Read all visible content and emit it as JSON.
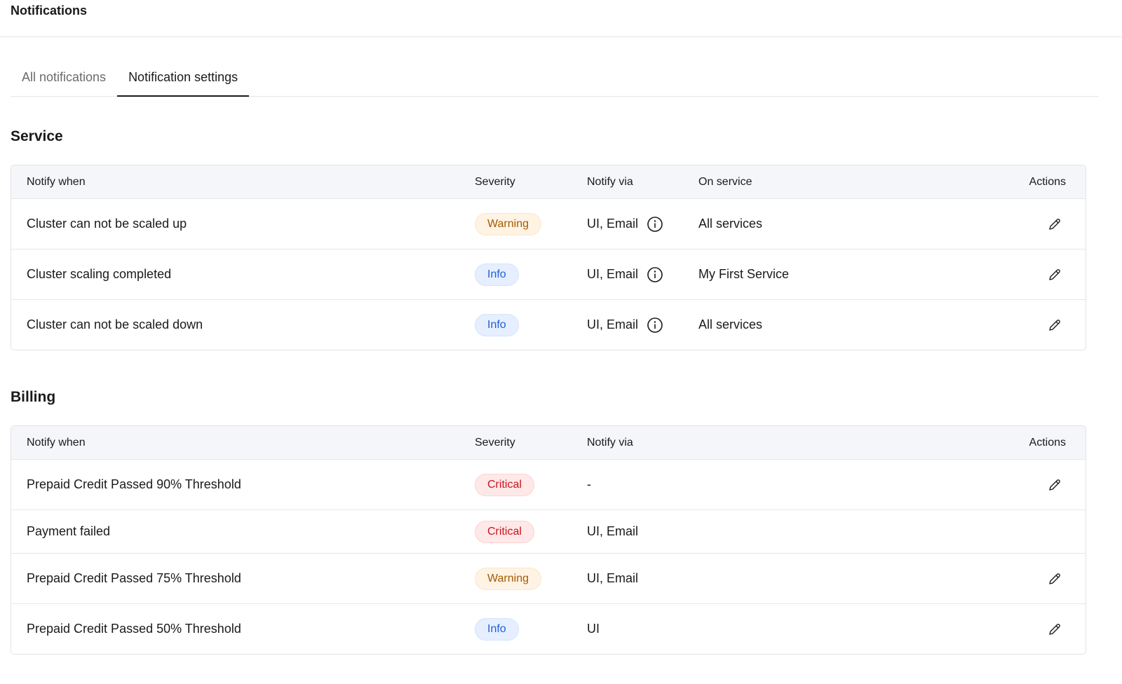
{
  "header": {
    "title": "Notifications"
  },
  "tabs": [
    {
      "label": "All notifications",
      "active": false
    },
    {
      "label": "Notification settings",
      "active": true
    }
  ],
  "colors": {
    "warning": "#a35a00",
    "info": "#1f5fd6",
    "critical": "#c8161d"
  },
  "service": {
    "title": "Service",
    "columns": [
      "Notify when",
      "Severity",
      "Notify via",
      "On service",
      "Actions"
    ],
    "rows": [
      {
        "notify_when": "Cluster can not be scaled up",
        "severity": "Warning",
        "notify_via": "UI, Email",
        "info_icon": true,
        "on_service": "All services",
        "editable": true
      },
      {
        "notify_when": "Cluster scaling completed",
        "severity": "Info",
        "notify_via": "UI, Email",
        "info_icon": true,
        "on_service": "My First Service",
        "editable": true
      },
      {
        "notify_when": "Cluster can not be scaled down",
        "severity": "Info",
        "notify_via": "UI, Email",
        "info_icon": true,
        "on_service": "All services",
        "editable": true
      }
    ]
  },
  "billing": {
    "title": "Billing",
    "columns": [
      "Notify when",
      "Severity",
      "Notify via",
      "Actions"
    ],
    "rows": [
      {
        "notify_when": "Prepaid Credit Passed 90% Threshold",
        "severity": "Critical",
        "notify_via": "-",
        "editable": true
      },
      {
        "notify_when": "Payment failed",
        "severity": "Critical",
        "notify_via": "UI, Email",
        "editable": false
      },
      {
        "notify_when": "Prepaid Credit Passed 75% Threshold",
        "severity": "Warning",
        "notify_via": "UI, Email",
        "editable": true
      },
      {
        "notify_when": "Prepaid Credit Passed 50% Threshold",
        "severity": "Info",
        "notify_via": "UI",
        "editable": true
      }
    ]
  }
}
